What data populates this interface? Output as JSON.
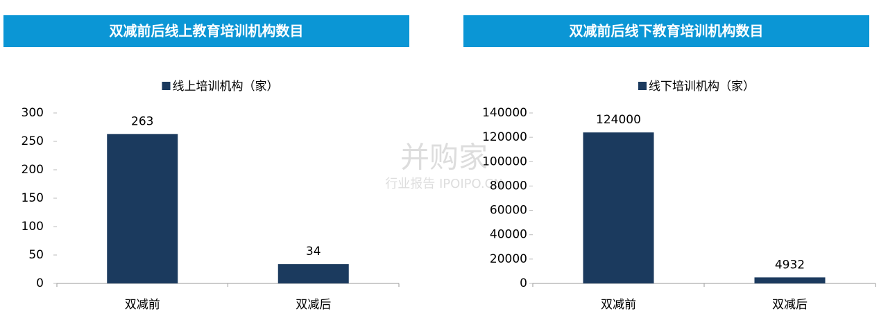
{
  "chart_data": [
    {
      "type": "bar",
      "title": "双减前后线上教育培训机构数目",
      "series": [
        {
          "name": "线上培训机构（家）",
          "color": "#1b3a5e",
          "values": [
            263,
            34
          ]
        }
      ],
      "categories": [
        "双减前",
        "双减后"
      ],
      "ylim": [
        0,
        300
      ],
      "yticks": [
        0,
        50,
        100,
        150,
        200,
        250,
        300
      ]
    },
    {
      "type": "bar",
      "title": "双减前后线下教育培训机构数目",
      "series": [
        {
          "name": "线下培训机构（家）",
          "color": "#1b3a5e",
          "values": [
            124000,
            4932
          ]
        }
      ],
      "categories": [
        "双减前",
        "双减后"
      ],
      "ylim": [
        0,
        140000
      ],
      "yticks": [
        0,
        20000,
        40000,
        60000,
        80000,
        100000,
        120000,
        140000
      ]
    }
  ],
  "watermark": {
    "logo": "并购家",
    "caption": "行业报告 IPOIPO.CN"
  }
}
